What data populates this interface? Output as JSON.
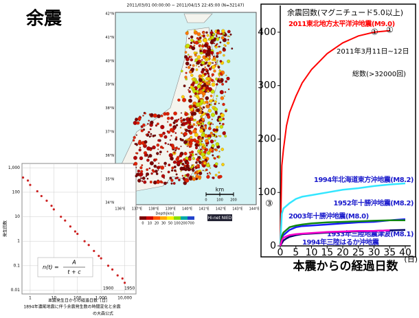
{
  "title": "余震",
  "map": {
    "title": "2011/03/01 00:00:00 ~ 2011/04/15 22:45:00 (N=32147)",
    "lat_labels": [
      "42°N",
      "41°N",
      "40°N",
      "39°N",
      "38°N",
      "37°N",
      "36°N",
      "35°N",
      "34°N"
    ],
    "lon_labels": [
      "136°E",
      "137°E",
      "138°E",
      "139°E",
      "140°E",
      "141°E",
      "142°E",
      "143°E",
      "144°E"
    ],
    "scale_label": "km",
    "scale_ticks": [
      0,
      100,
      200
    ],
    "colorbar_label": "Depth[km]",
    "colorbar_ticks": [
      "0",
      "10",
      "20",
      "30",
      "50",
      "100",
      "200",
      "700"
    ],
    "logo": "Hi-net NIED"
  },
  "chart_data": [
    {
      "type": "line",
      "title": "余震回数(マグニチュード5.0以上)",
      "x": [
        0,
        0.5,
        1,
        2,
        3,
        5,
        7,
        10,
        15,
        20,
        25,
        30,
        35,
        40
      ],
      "xlim": [
        0,
        40
      ],
      "xticks": [
        0,
        5,
        10,
        15,
        20,
        25,
        30,
        35,
        40
      ],
      "ylim": [
        0,
        450
      ],
      "yticks": [
        0,
        100,
        200,
        300,
        400
      ],
      "xlabel": "本震からの経過日数",
      "xunit": "(日)",
      "annotations": [
        "2011年3月11日~12日",
        "総数(>32000回)",
        "①",
        "①",
        "③"
      ],
      "series": [
        {
          "name": "2011東北地方太平洋沖地震(M9.0)",
          "color": "#ff0000",
          "values": [
            0,
            150,
            180,
            225,
            250,
            280,
            305,
            330,
            360,
            380,
            393,
            400,
            403,
            null
          ]
        },
        {
          "name": "1994年北海道東方沖地震(M8.2)",
          "color": "#33e6ff",
          "values": [
            0,
            60,
            70,
            75,
            80,
            88,
            92,
            95,
            100,
            105,
            108,
            112,
            115,
            117
          ]
        },
        {
          "name": "1952年十勝沖地震(M8.2)",
          "color": "#1a1aff",
          "values": [
            0,
            15,
            20,
            25,
            30,
            35,
            37,
            38,
            40,
            42,
            44,
            45,
            48,
            50
          ]
        },
        {
          "name": "2003年十勝沖地震(M8.0)",
          "color": "#118811",
          "values": [
            0,
            18,
            25,
            30,
            35,
            38,
            40,
            42,
            44,
            45,
            46,
            47,
            48,
            48
          ]
        },
        {
          "name": "1933年三陸地震津波(M8.1)",
          "color": "#000066",
          "values": [
            0,
            5,
            10,
            14,
            17,
            20,
            22,
            23,
            25,
            26,
            27,
            28,
            29,
            30
          ]
        },
        {
          "name": "1994年三陸はるか沖地震",
          "color": "#ff00cc",
          "values": [
            0,
            10,
            15,
            18,
            20,
            22,
            23,
            24,
            26,
            27,
            28,
            28,
            29,
            null
          ]
        }
      ]
    },
    {
      "type": "scatter",
      "log_x": true,
      "log_y": true,
      "color": "#cc2222",
      "xlabel": "本震発生日からの経過日数［日］",
      "ylabel": "発生回数",
      "caption": [
        "1894年濃尾地震に伴う余震発生数の時間変化と余震",
        "の大森公式"
      ],
      "formula": {
        "lhs": "n(t) =",
        "numerator": "A",
        "denominator": "t + c"
      },
      "annotations": [
        "1900",
        "1950"
      ],
      "xlim": [
        0.45,
        30000
      ],
      "xticks": [
        1,
        10,
        100,
        {
          "value": 1000,
          "label": "1,000"
        },
        {
          "value": 10000,
          "label": "10,000"
        }
      ],
      "ylim": [
        0.007,
        1500
      ],
      "yticks": [
        0.01,
        0.1,
        1,
        10,
        100,
        {
          "value": 1000,
          "label": "1,000"
        }
      ],
      "x": [
        0.5,
        0.8,
        1,
        2,
        3,
        5,
        8,
        10,
        20,
        30,
        50,
        80,
        100,
        200,
        300,
        500,
        800,
        1000,
        2000,
        3000,
        5000,
        8000,
        10000
      ],
      "values": [
        400,
        300,
        200,
        110,
        70,
        45,
        28,
        20,
        10,
        7,
        4,
        2.5,
        2,
        1,
        0.7,
        0.4,
        0.25,
        0.2,
        0.1,
        0.07,
        0.04,
        0.03,
        0.02
      ]
    }
  ]
}
